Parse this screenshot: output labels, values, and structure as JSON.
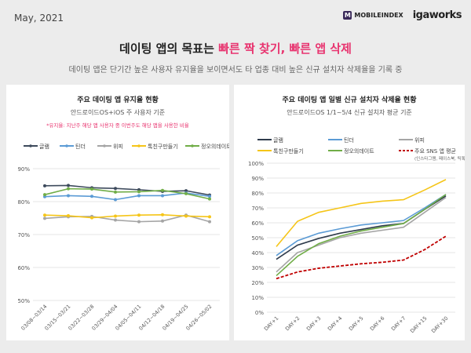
{
  "header": {
    "date": "May, 2021",
    "logo_mobileindex": "MOBILEINDEX",
    "logo_igaworks": "igaworks",
    "title_plain": "데이팅 앱의 목표는 ",
    "title_highlight": "빠른 짝 찾기, 빠른 앱 삭제",
    "subtitle": "데이팅 앱은 단기간 높은 사용자 유지율을 보이면서도 타 업종 대비 높은 신규 설치자 삭제율을 기록 중",
    "highlight_color": "#e8346f"
  },
  "chart_data": [
    {
      "type": "line",
      "title": "주요 데이팅 앱 유지율 현황",
      "subtitle": "안드로이드OS+iOS 주 사용자 기준",
      "note": "*유지율: 지난주 해당 앱 사용자 중 이번주도 해당 앱을 사용한 비율",
      "categories": [
        "03/08~03/14",
        "03/15~03/21",
        "03/22~03/28",
        "03/29~04/04",
        "04/05~04/11",
        "04/12~04/18",
        "04/19~04/25",
        "04/26~05/02"
      ],
      "ylim": [
        50,
        90
      ],
      "yticks": [
        "50%",
        "60%",
        "70%",
        "80%",
        "90%"
      ],
      "grid": true,
      "legend": "top",
      "markers": true,
      "series": [
        {
          "name": "글램",
          "color": "#3d4a5c",
          "values": [
            84.8,
            84.9,
            84.2,
            84.0,
            83.6,
            83.1,
            83.3,
            82.0
          ]
        },
        {
          "name": "틴더",
          "color": "#5b9bd5",
          "values": [
            81.5,
            81.8,
            81.6,
            80.6,
            81.8,
            81.8,
            82.6,
            81.6
          ]
        },
        {
          "name": "위피",
          "color": "#a5a5a5",
          "values": [
            74.9,
            75.4,
            75.5,
            74.4,
            73.9,
            74.1,
            75.9,
            73.9
          ]
        },
        {
          "name": "톡친구만들기",
          "color": "#f5c518",
          "values": [
            75.9,
            75.7,
            75.1,
            75.6,
            75.9,
            76.0,
            75.6,
            75.4
          ]
        },
        {
          "name": "정오의데이트",
          "color": "#70ad47",
          "values": [
            82.1,
            83.9,
            83.8,
            82.9,
            83.0,
            83.4,
            82.4,
            80.8
          ]
        }
      ]
    },
    {
      "type": "line",
      "title": "주요 데이팅 앱 일별 신규 설치자 삭제율 현황",
      "subtitle": "안드로이드OS 1/1~5/4 신규 설치자 평균 기준",
      "categories": [
        "DAY+1",
        "DAY+2",
        "DAY+3",
        "DAY+4",
        "DAY+5",
        "DAY+6",
        "DAY+7",
        "DAY+15",
        "DAY+30"
      ],
      "ylim": [
        0,
        100
      ],
      "yticks": [
        "0%",
        "10%",
        "20%",
        "30%",
        "40%",
        "50%",
        "60%",
        "70%",
        "80%",
        "90%",
        "100%"
      ],
      "grid": true,
      "legend": "top",
      "markers": false,
      "series": [
        {
          "name": "글램",
          "color": "#2f3b4c",
          "values": [
            35.5,
            45,
            49.5,
            53,
            55.5,
            58,
            59.5,
            69,
            78
          ]
        },
        {
          "name": "틴더",
          "color": "#5b9bd5",
          "values": [
            38,
            48,
            53,
            56,
            58.5,
            60,
            61.5,
            70,
            79
          ]
        },
        {
          "name": "위피",
          "color": "#a5a5a5",
          "values": [
            27,
            40,
            45,
            50,
            53,
            55,
            57,
            67,
            77
          ]
        },
        {
          "name": "톡친구만들기",
          "color": "#f5c518",
          "values": [
            44,
            61,
            67,
            70,
            73,
            74.5,
            75.5,
            82,
            89
          ]
        },
        {
          "name": "정오의데이트",
          "color": "#70ad47",
          "values": [
            24.5,
            37.5,
            46,
            51,
            54.5,
            57,
            59.5,
            69,
            79
          ]
        },
        {
          "name": "주요 SNS 앱 평균",
          "note": "(인스타그램, 페이스북, 틱톡)",
          "color": "#c00000",
          "dashed": true,
          "values": [
            22.5,
            27,
            29.5,
            31,
            32.5,
            33.5,
            35,
            42,
            51
          ]
        }
      ]
    }
  ]
}
